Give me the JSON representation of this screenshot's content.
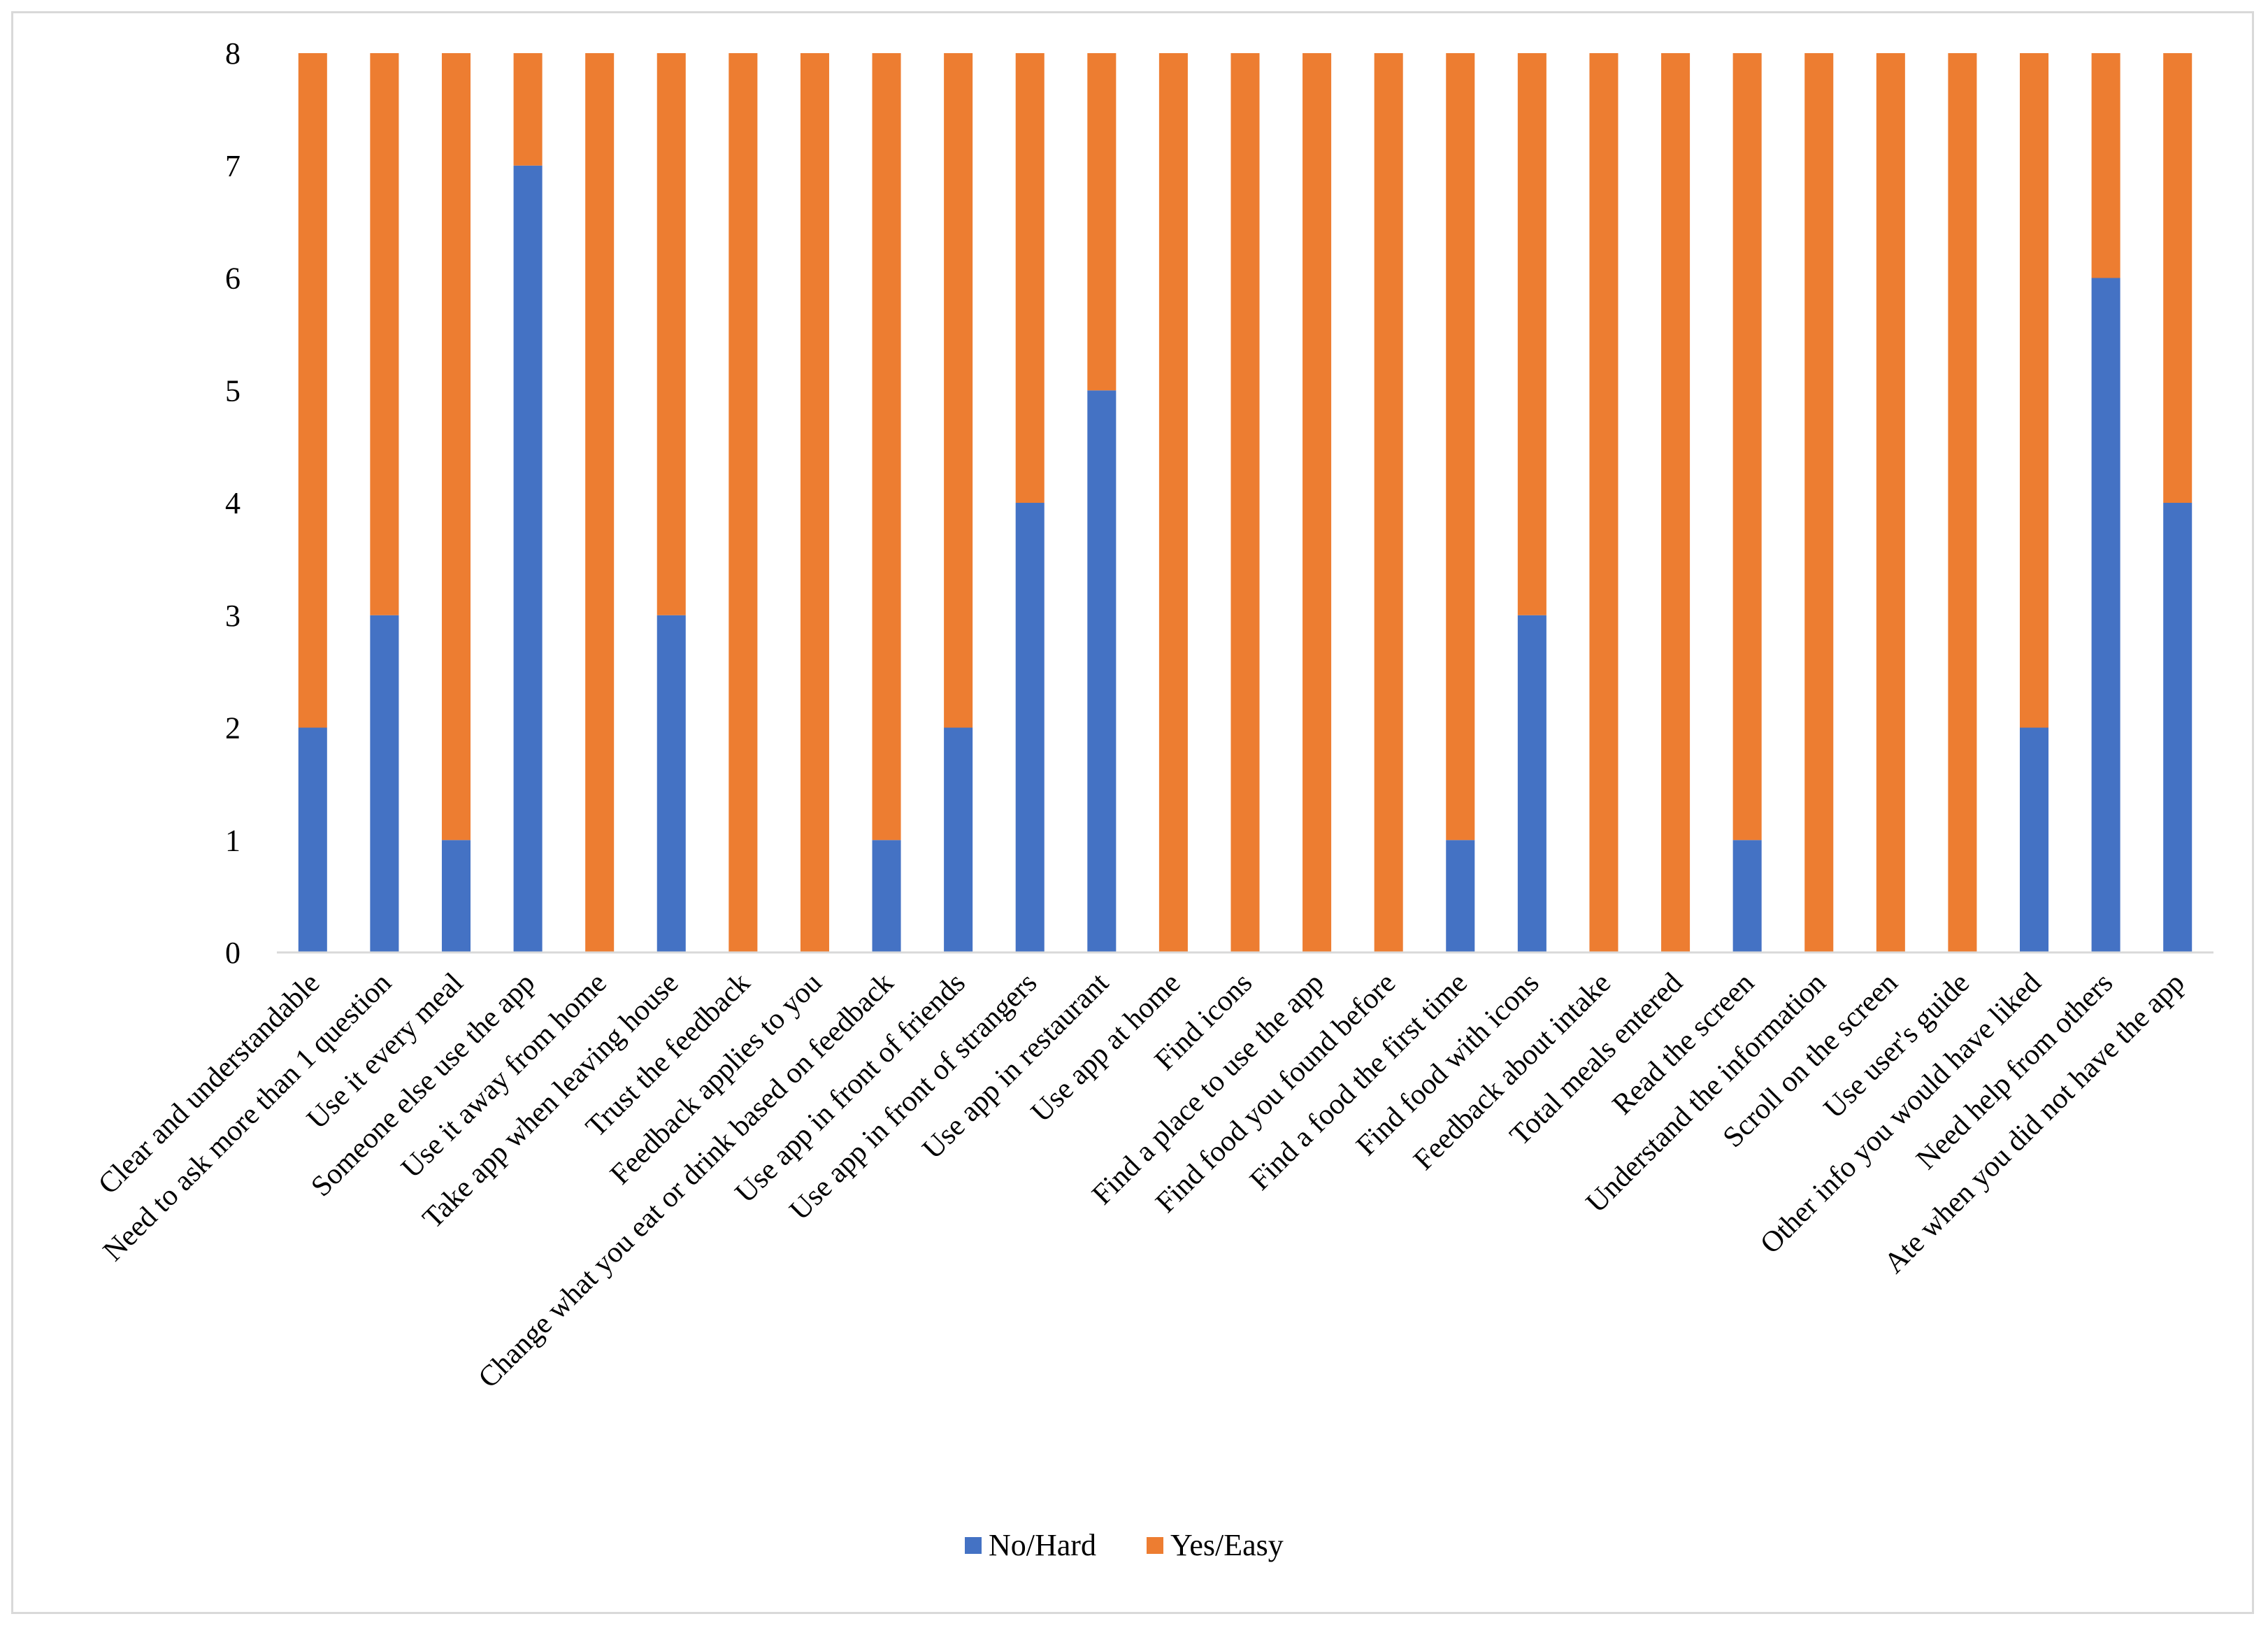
{
  "chart_data": {
    "type": "bar",
    "stacked": true,
    "title": "",
    "xlabel": "",
    "ylabel": "",
    "ylim": [
      0,
      8
    ],
    "yticks": [
      "0",
      "1",
      "2",
      "3",
      "4",
      "5",
      "6",
      "7",
      "8"
    ],
    "grid": false,
    "legend_position": "bottom",
    "categories": [
      "Clear and understandable",
      "Need to ask more than 1 question",
      "Use it every meal",
      "Someone else use the app",
      "Use it away from home",
      "Take app when leaving house",
      "Trust the feedback",
      "Feedback applies to you",
      "Change what you eat or drink based on feedback",
      "Use app in front of friends",
      "Use app in front of strangers",
      "Use app in restaurant",
      "Use app at home",
      "Find icons",
      "Find a place to use the app",
      "Find food you found before",
      "Find a food the first time",
      "Find food with icons",
      "Feedback about intake",
      "Total meals entered",
      "Read the screen",
      "Understand the information",
      "Scroll on the screen",
      "Use user's guide",
      "Other info you would have liked",
      "Need help from others",
      "Ate when you did not have the app"
    ],
    "series": [
      {
        "name": "No/Hard",
        "color": "#4472c4",
        "values": [
          2,
          3,
          1,
          7,
          0,
          3,
          0,
          0,
          1,
          2,
          4,
          5,
          0,
          0,
          0,
          0,
          1,
          3,
          0,
          0,
          1,
          0,
          0,
          0,
          2,
          6,
          4
        ]
      },
      {
        "name": "Yes/Easy",
        "color": "#ed7d31",
        "values": [
          6,
          5,
          7,
          1,
          8,
          5,
          8,
          8,
          7,
          6,
          4,
          3,
          8,
          8,
          8,
          8,
          7,
          5,
          8,
          8,
          7,
          8,
          8,
          8,
          6,
          2,
          4
        ]
      }
    ]
  }
}
